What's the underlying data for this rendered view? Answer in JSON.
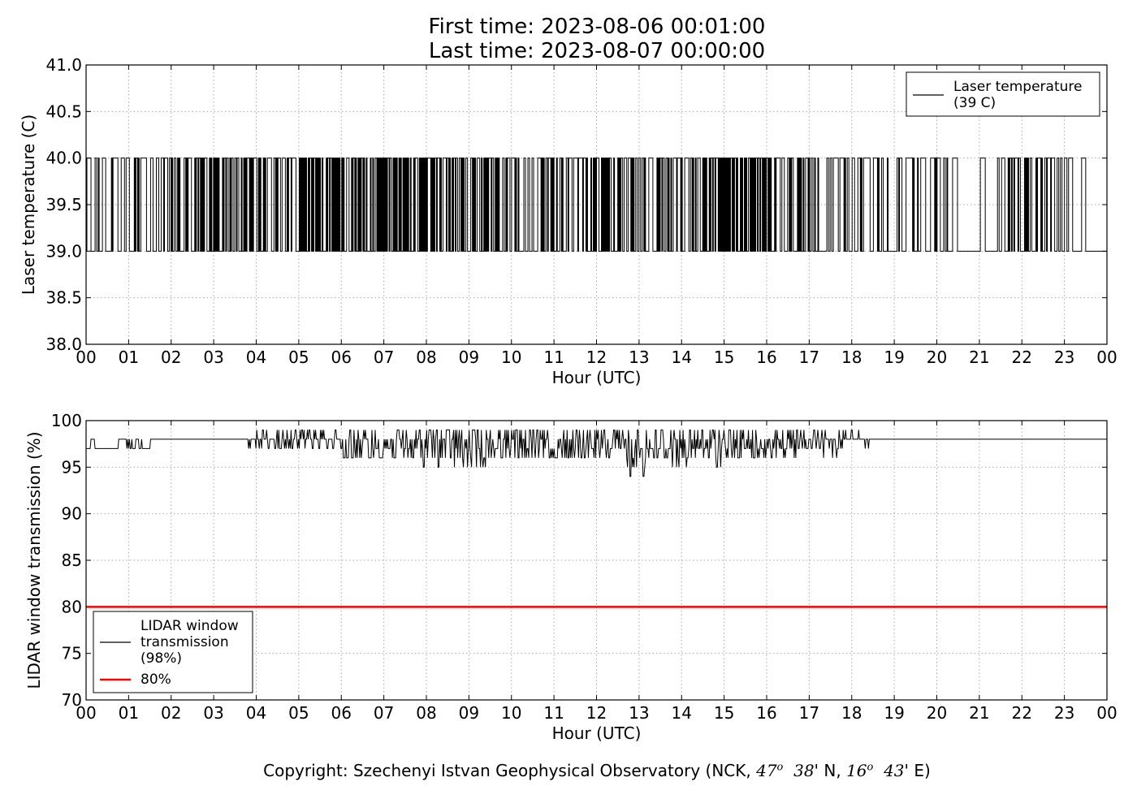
{
  "header": {
    "title_line1": "First time: 2023-08-06 00:01:00",
    "title_line2": "Last time: 2023-08-07 00:00:00"
  },
  "footer": {
    "prefix": "Copyright: Szechenyi Istvan Geophysical Observatory (NCK, ",
    "lat_deg": "47",
    "lat_min": "38",
    "lat_rest": "' N, ",
    "lon_deg": "16",
    "lon_min": "43",
    "lon_rest": "' E)"
  },
  "colors": {
    "data_line": "#000000",
    "threshold_line": "#ff0000",
    "grid": "#aaaaaa"
  },
  "chart_data": [
    {
      "type": "line",
      "xlabel": "Hour (UTC)",
      "ylabel": "Laser temperature (C)",
      "xlim": [
        0,
        24
      ],
      "ylim": [
        38.0,
        41.0
      ],
      "x_ticks": [
        "00",
        "01",
        "02",
        "03",
        "04",
        "05",
        "06",
        "07",
        "08",
        "09",
        "10",
        "11",
        "12",
        "13",
        "14",
        "15",
        "16",
        "17",
        "18",
        "19",
        "20",
        "21",
        "22",
        "23",
        "00"
      ],
      "y_ticks": [
        "41.0",
        "40.5",
        "40.0",
        "39.5",
        "39.0",
        "38.5",
        "38.0"
      ],
      "grid": true,
      "legend_position": "top-right",
      "series": [
        {
          "name": "Laser temperature\n(39 C)",
          "color": "#000000",
          "baseline": 39.0,
          "step_value": 40.0,
          "spike_density": [
            [
              0,
              0.5
            ],
            [
              1,
              0.4
            ],
            [
              2,
              0.8
            ],
            [
              3,
              0.9
            ],
            [
              4,
              0.8
            ],
            [
              5,
              0.9
            ],
            [
              6,
              1.0
            ],
            [
              7,
              0.9
            ],
            [
              8,
              1.0
            ],
            [
              9,
              0.9
            ],
            [
              10,
              0.6
            ],
            [
              11,
              0.7
            ],
            [
              12,
              0.9
            ],
            [
              13,
              0.8
            ],
            [
              14,
              0.6
            ],
            [
              15,
              1.0
            ],
            [
              16,
              0.9
            ],
            [
              17,
              0.6
            ],
            [
              18,
              0.6
            ],
            [
              19,
              0.5
            ],
            [
              20,
              0.4
            ],
            [
              21,
              0.1
            ],
            [
              22,
              0.6
            ],
            [
              23,
              0.5
            ],
            [
              23.5,
              0.0
            ]
          ]
        }
      ]
    },
    {
      "type": "line",
      "xlabel": "Hour (UTC)",
      "ylabel": "LIDAR window transmission (%)",
      "xlim": [
        0,
        24
      ],
      "ylim": [
        70,
        100
      ],
      "x_ticks": [
        "00",
        "01",
        "02",
        "03",
        "04",
        "05",
        "06",
        "07",
        "08",
        "09",
        "10",
        "11",
        "12",
        "13",
        "14",
        "15",
        "16",
        "17",
        "18",
        "19",
        "20",
        "21",
        "22",
        "23",
        "00"
      ],
      "y_ticks": [
        "100",
        "95",
        "90",
        "85",
        "80",
        "75",
        "70"
      ],
      "grid": true,
      "legend_position": "bottom-left",
      "series": [
        {
          "name": "LIDAR window\ntransmission\n(98%)",
          "color": "#000000",
          "baseline": 98,
          "segments": [
            [
              0.0,
              97
            ],
            [
              0.1,
              98
            ],
            [
              0.2,
              97
            ],
            [
              0.75,
              98
            ],
            [
              0.95,
              97
            ],
            [
              1.1,
              98
            ],
            [
              1.5,
              98
            ],
            [
              3.8,
              98
            ],
            [
              4.0,
              98
            ],
            [
              6.0,
              97.5
            ],
            [
              8.0,
              96.5
            ],
            [
              10.0,
              97
            ],
            [
              12.0,
              97
            ],
            [
              13.0,
              96.5
            ],
            [
              14.0,
              97
            ],
            [
              16.0,
              97.5
            ],
            [
              17.5,
              98
            ],
            [
              18.5,
              98
            ],
            [
              24.0,
              98
            ]
          ],
          "min_values": [
            [
              6.0,
              96
            ],
            [
              8.0,
              95
            ],
            [
              9.0,
              95
            ],
            [
              10.7,
              95
            ],
            [
              12.8,
              94
            ],
            [
              13.1,
              94
            ],
            [
              14.7,
              95
            ]
          ]
        },
        {
          "name": "80%",
          "color": "#ff0000",
          "constant": 80
        }
      ]
    }
  ]
}
